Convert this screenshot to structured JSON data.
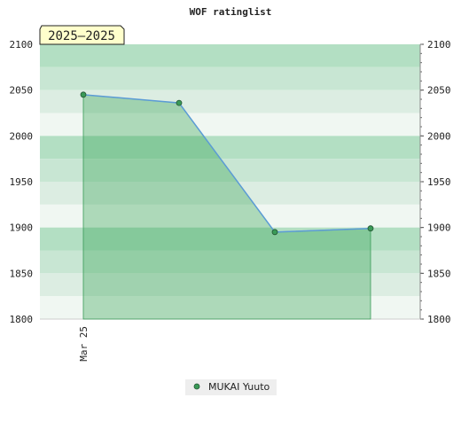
{
  "chart_data": {
    "type": "area",
    "title": "WOF ratinglist",
    "badge": "2025—2025",
    "categories": [
      "Mar 25",
      null,
      null,
      null
    ],
    "series": [
      {
        "name": "MUKAI Yuuto",
        "color": "#3a9a57",
        "line_color": "#5b9bd5",
        "values": [
          2045,
          2036,
          1895,
          1899
        ]
      }
    ],
    "ylim": [
      1800,
      2100
    ],
    "yticks": [
      1800,
      1850,
      1900,
      1950,
      2000,
      2050,
      2100
    ],
    "grid": true
  }
}
